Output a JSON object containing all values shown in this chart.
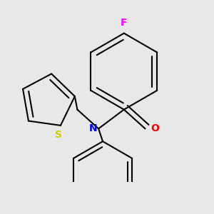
{
  "background_color": "#e8e8e8",
  "bond_color": "#000000",
  "bond_width": 1.5,
  "atom_colors": {
    "F": "#ff00ff",
    "N": "#0000ff",
    "O": "#ff0000",
    "S": "#cccc00",
    "C": "#000000"
  },
  "font_size": 9,
  "figsize": [
    3.0,
    3.0
  ],
  "dpi": 100
}
